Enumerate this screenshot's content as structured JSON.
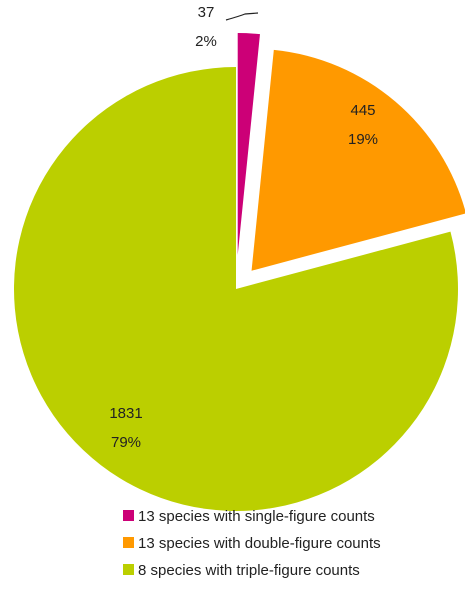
{
  "chart_data": {
    "type": "pie",
    "title": "",
    "start_angle_deg": 0,
    "direction": "clockwise",
    "exploded": true,
    "legend_position": "bottom",
    "series": [
      {
        "name": "",
        "points": [
          {
            "label": "13 species with single-figure counts",
            "value": 37,
            "value_label": "37",
            "percent_label": "2%",
            "color": "#cc0077"
          },
          {
            "label": "13 species with double-figure counts",
            "value": 445,
            "value_label": "445",
            "percent_label": "19%",
            "color": "#ff9900"
          },
          {
            "label": "8 species with triple-figure counts",
            "value": 1831,
            "value_label": "1831",
            "percent_label": "79%",
            "color": "#bbcf00"
          }
        ]
      }
    ]
  }
}
